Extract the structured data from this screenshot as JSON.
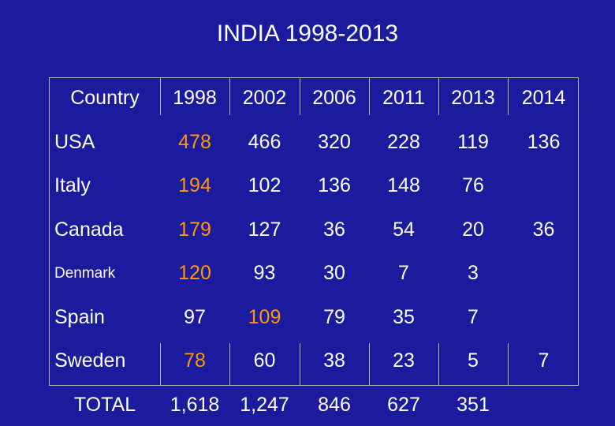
{
  "title": "INDIA  1998-2013",
  "table": {
    "header": [
      "Country",
      "1998",
      "2002",
      "2006",
      "2011",
      "2013",
      "2014"
    ],
    "rows": [
      [
        "USA",
        {
          "text": "478",
          "color": "#ff9900"
        },
        "466",
        "320",
        "228",
        "119",
        "136"
      ],
      [
        "Italy",
        {
          "text": "194",
          "color": "#ff9900"
        },
        "102",
        "136",
        "148",
        "76",
        null
      ],
      [
        "Canada",
        {
          "text": "179",
          "color": "#ff9900"
        },
        "127",
        "36",
        "54",
        "20",
        "36"
      ],
      [
        "Denmark",
        {
          "text": "120",
          "color": "#ff9900"
        },
        "93",
        "30",
        "7",
        "3",
        null
      ],
      [
        "Spain",
        "97",
        {
          "text": "109",
          "color": "#ff9900"
        },
        "79",
        "35",
        "7",
        null
      ],
      [
        "Sweden",
        {
          "text": "78",
          "color": "#ff9900"
        },
        "60",
        "38",
        "23",
        "5",
        "7"
      ],
      [
        "TOTAL",
        "1,618",
        "1,247",
        "846",
        "627",
        "351",
        null
      ]
    ]
  }
}
